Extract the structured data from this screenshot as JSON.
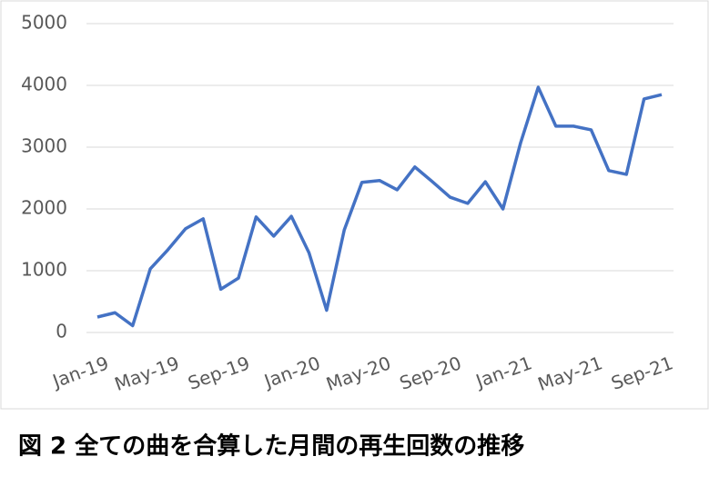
{
  "chart_data": {
    "type": "line",
    "caption": "図 2 全ての曲を合算した月間の再生回数の推移",
    "categories": [
      "Jan-19",
      null,
      null,
      null,
      "May-19",
      null,
      null,
      null,
      "Sep-19",
      null,
      null,
      null,
      "Jan-20",
      null,
      null,
      null,
      "May-20",
      null,
      null,
      null,
      "Sep-20",
      null,
      null,
      null,
      "Jan-21",
      null,
      null,
      null,
      "May-21",
      null,
      null,
      null,
      "Sep-21"
    ],
    "series": [
      {
        "color": "#4472c4",
        "values": [
          250,
          320,
          110,
          1030,
          1340,
          1680,
          1840,
          700,
          880,
          1870,
          1560,
          1880,
          1290,
          360,
          1660,
          2430,
          2460,
          2310,
          2680,
          2440,
          2190,
          2090,
          2440,
          2000,
          3070,
          3970,
          3340,
          3340,
          3280,
          2620,
          2560,
          3780,
          3850
        ]
      }
    ],
    "ylim": [
      0,
      5000
    ],
    "yticks": [
      0,
      1000,
      2000,
      3000,
      4000,
      5000
    ],
    "grid": true
  }
}
